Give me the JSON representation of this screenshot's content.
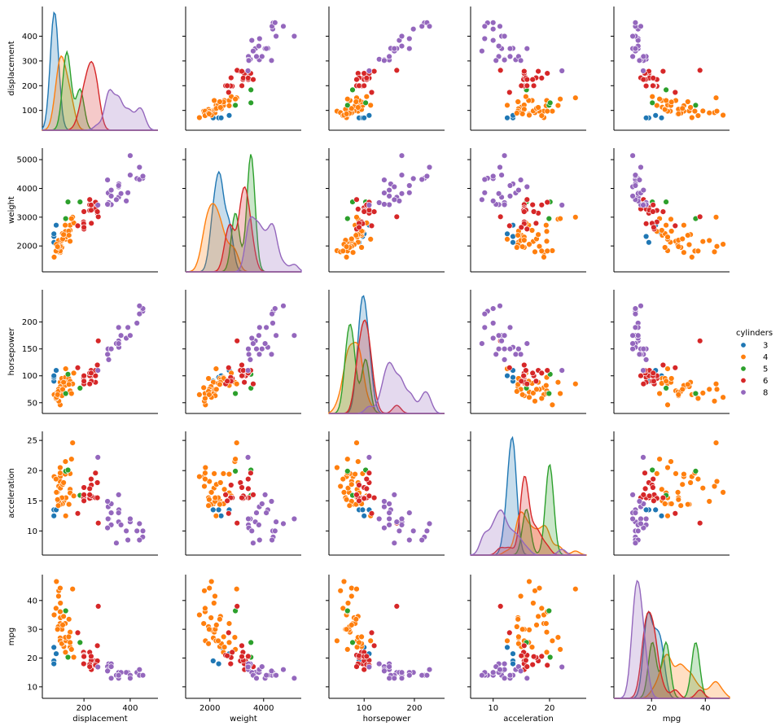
{
  "chart_data": {
    "type": "scatter",
    "variables": [
      "displacement",
      "weight",
      "horsepower",
      "acceleration",
      "mpg"
    ],
    "hue": "cylinders",
    "diagonal": "kde",
    "legend_title": "cylinders",
    "legend_position": "right",
    "grid": false,
    "ranges": {
      "displacement": [
        20,
        520
      ],
      "weight": [
        1100,
        5400
      ],
      "horsepower": [
        30,
        260
      ],
      "acceleration": [
        6,
        26.5
      ],
      "mpg": [
        6,
        49
      ]
    },
    "ticks": {
      "displacement": [
        100,
        200,
        300,
        400
      ],
      "weight": [
        2000,
        3000,
        4000,
        5000
      ],
      "horsepower": [
        50,
        100,
        150,
        200
      ],
      "acceleration": [
        10,
        15,
        20,
        25
      ],
      "mpg": [
        10,
        20,
        30,
        40
      ]
    },
    "tick_labels": {
      "displacement_x": [
        "200",
        "400"
      ],
      "weight_x": [
        "2000",
        "4000"
      ],
      "horsepower_x": [
        "100",
        "200"
      ],
      "acceleration_x": [
        "10",
        "20"
      ],
      "mpg_x": [
        "20",
        "40"
      ],
      "displacement_y": [
        "100",
        "200",
        "300",
        "400"
      ],
      "weight_y": [
        "2000",
        "3000",
        "4000",
        "5000"
      ],
      "horsepower_y": [
        "50",
        "100",
        "150",
        "200"
      ],
      "acceleration_y": [
        "10",
        "15",
        "20",
        "25"
      ],
      "mpg_y": [
        "10",
        "20",
        "30",
        "40"
      ]
    },
    "series": [
      {
        "name": "3",
        "color": "#1f77b4",
        "displacement": [
          70,
          70,
          80,
          70
        ],
        "weight": [
          2124,
          2330,
          2720,
          2420
        ],
        "horsepower": [
          90,
          97,
          110,
          100
        ],
        "acceleration": [
          13.5,
          13.5,
          13.5,
          12.5
        ],
        "mpg": [
          19.0,
          18.0,
          21.5,
          23.7
        ]
      },
      {
        "name": "4",
        "color": "#ff7f0e",
        "displacement": [
          113,
          97,
          97,
          107,
          104,
          121,
          97,
          140,
          122,
          120,
          71,
          98,
          91,
          97,
          85,
          120,
          140,
          97,
          98,
          134,
          79,
          140,
          90,
          89,
          151,
          105,
          119,
          108,
          156,
          112,
          135,
          81,
          146,
          86
        ],
        "weight": [
          2372,
          2130,
          1835,
          2430,
          1950,
          2234,
          1773,
          2164,
          2310,
          2506,
          1613,
          2045,
          1795,
          1985,
          2035,
          2930,
          2542,
          1825,
          2155,
          2515,
          1825,
          2720,
          2190,
          1950,
          3000,
          2200,
          2720,
          2245,
          2800,
          2395,
          2370,
          2060,
          2950,
          1975
        ],
        "horsepower": [
          95,
          88,
          46,
          94,
          95,
          113,
          78,
          72,
          86,
          97,
          65,
          80,
          53,
          75,
          70,
          88,
          86,
          67,
          68,
          95,
          58,
          90,
          75,
          71,
          85,
          63,
          82,
          75,
          105,
          88,
          84,
          60,
          67,
          65
        ],
        "acceleration": [
          15.0,
          14.5,
          20.5,
          14.5,
          15.5,
          12.5,
          19.0,
          19.5,
          15.5,
          19.5,
          19.0,
          14.4,
          17.4,
          18.2,
          16.4,
          21.5,
          16.9,
          19.6,
          17.1,
          14.5,
          18.6,
          16.3,
          14.9,
          14.2,
          24.6,
          15.5,
          19.4,
          17.7,
          15.8,
          18.0,
          14.4,
          16.4,
          21.9,
          15.2
        ],
        "mpg": [
          24,
          27,
          26,
          25,
          25,
          26,
          32,
          29,
          26,
          22,
          35,
          34,
          43.4,
          44.3,
          29.8,
          27.2,
          23.8,
          36.1,
          39.1,
          27.4,
          37.3,
          25.4,
          41.5,
          30.9,
          44,
          30,
          32,
          31.5,
          20.3,
          34.5,
          33.5,
          46.6,
          23,
          30
        ]
      },
      {
        "name": "5",
        "color": "#2ca02c",
        "displacement": [
          121,
          131,
          183
        ],
        "weight": [
          2950,
          3530,
          3530
        ],
        "horsepower": [
          67,
          103,
          77
        ],
        "acceleration": [
          19.9,
          20.1,
          15.9
        ],
        "mpg": [
          36.4,
          20.3,
          25.4
        ]
      },
      {
        "name": "6",
        "color": "#d62728",
        "displacement": [
          198,
          199,
          200,
          225,
          232,
          250,
          250,
          258,
          225,
          232,
          200,
          262,
          231,
          200,
          225,
          250,
          258,
          173,
          231,
          225
        ],
        "weight": [
          2833,
          2774,
          2587,
          3439,
          3288,
          3329,
          3282,
          3139,
          3233,
          2789,
          2648,
          3015,
          3245,
          3193,
          3430,
          3520,
          3190,
          2700,
          3425,
          3613
        ],
        "horsepower": [
          95,
          97,
          85,
          105,
          100,
          100,
          88,
          110,
          100,
          90,
          90,
          165,
          110,
          100,
          105,
          110,
          120,
          115,
          105,
          85
        ],
        "acceleration": [
          15.5,
          15.5,
          16.0,
          15.5,
          15.5,
          15.5,
          15.5,
          18.0,
          15.4,
          17.6,
          15.0,
          11.3,
          15.8,
          17.2,
          17.0,
          19.6,
          15.5,
          12.9,
          18.6,
          16.0
        ],
        "mpg": [
          22,
          18,
          21,
          18,
          16,
          19,
          18,
          19,
          22,
          20.2,
          20.8,
          38,
          19.2,
          20.5,
          17.7,
          17.5,
          24.3,
          28.8,
          20.6,
          17
        ]
      },
      {
        "name": "8",
        "color": "#9467bd",
        "displacement": [
          307,
          350,
          318,
          304,
          302,
          429,
          454,
          440,
          455,
          390,
          383,
          340,
          400,
          351,
          360,
          305,
          318,
          350,
          318,
          260,
          400,
          350,
          302,
          440
        ],
        "weight": [
          3504,
          3693,
          3436,
          3433,
          3449,
          4341,
          4354,
          4312,
          4425,
          3850,
          3563,
          3609,
          4464,
          4154,
          3821,
          3840,
          3735,
          4055,
          3940,
          3420,
          5140,
          4100,
          4295,
          4735
        ],
        "horsepower": [
          130,
          165,
          150,
          150,
          140,
          198,
          220,
          215,
          225,
          190,
          170,
          160,
          175,
          153,
          175,
          140,
          150,
          160,
          150,
          110,
          175,
          190,
          140,
          230
        ],
        "acceleration": [
          12.0,
          11.5,
          11.0,
          12.0,
          10.5,
          10.0,
          9.0,
          8.5,
          10.0,
          8.5,
          10.0,
          8.0,
          11.5,
          13.5,
          11.0,
          14.0,
          13.0,
          16.0,
          14.5,
          22.2,
          12.0,
          13.0,
          14.9,
          11.2
        ],
        "mpg": [
          18,
          15,
          18,
          16,
          17,
          15,
          14,
          14,
          14,
          15,
          15,
          14,
          14,
          14,
          15,
          16,
          13,
          13,
          17,
          16.9,
          13,
          14,
          15.5,
          16
        ]
      }
    ]
  }
}
